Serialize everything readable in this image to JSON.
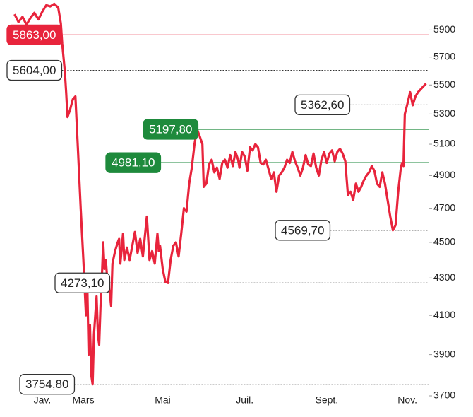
{
  "chart_data": {
    "type": "line",
    "log_scale": true,
    "ylim": [
      3700,
      6130
    ],
    "yticks": [
      3700,
      3900,
      4100,
      4300,
      4500,
      4700,
      4900,
      5100,
      5300,
      5500,
      5700,
      5900
    ],
    "xlim": [
      5,
      322
    ],
    "xticks": [
      {
        "value": 29,
        "label": "Jav."
      },
      {
        "value": 60,
        "label": "Mars"
      },
      {
        "value": 120,
        "label": "Mai"
      },
      {
        "value": 182,
        "label": "Juil."
      },
      {
        "value": 244,
        "label": "Sept."
      },
      {
        "value": 305,
        "label": "Nov."
      }
    ],
    "series": [
      {
        "color": "#e8243c",
        "x": [
          8,
          11,
          14,
          17,
          20,
          23,
          26,
          29,
          32,
          35,
          38,
          41,
          43,
          44,
          46,
          47,
          48,
          50,
          52,
          54,
          56,
          58,
          60,
          62,
          63,
          64,
          65,
          66,
          67,
          68,
          70,
          71,
          72,
          73,
          74,
          75,
          76,
          77,
          78,
          80,
          81,
          82,
          84,
          86,
          87,
          88,
          90,
          91,
          93,
          95,
          97,
          99,
          101,
          103,
          105,
          108,
          110,
          112,
          114,
          116,
          117,
          118,
          120,
          122,
          124,
          126,
          128,
          130,
          132,
          134,
          136,
          138,
          140,
          142,
          144,
          146,
          148,
          150,
          151,
          153,
          155,
          157,
          159,
          161,
          163,
          165,
          167,
          169,
          171,
          173,
          175,
          177,
          178,
          180,
          182,
          184,
          186,
          188,
          190,
          192,
          194,
          196,
          198,
          200,
          202,
          204,
          206,
          208,
          210,
          212,
          214,
          216,
          218,
          220,
          222,
          224,
          226,
          228,
          230,
          232,
          234,
          236,
          238,
          240,
          242,
          244,
          246,
          248,
          250,
          252,
          254,
          256,
          258,
          260,
          262,
          264,
          266,
          268,
          270,
          272,
          274,
          276,
          278,
          280,
          282,
          284,
          286,
          288,
          290,
          292,
          294,
          296,
          298,
          300,
          301,
          302,
          303,
          305,
          307,
          309,
          311,
          313,
          316,
          319
        ],
        "values": [
          6020,
          5960,
          6000,
          5940,
          5990,
          6030,
          5980,
          6040,
          6090,
          6080,
          6100,
          6070,
          5950,
          5800,
          5600,
          5450,
          5280,
          5330,
          5400,
          5420,
          5050,
          4700,
          4400,
          4100,
          4250,
          3900,
          4050,
          3800,
          3754.8,
          4000,
          4200,
          4000,
          3950,
          4150,
          4300,
          4500,
          4350,
          4400,
          4300,
          4220,
          4150,
          4380,
          4450,
          4500,
          4520,
          4380,
          4550,
          4400,
          4470,
          4400,
          4480,
          4560,
          4440,
          4520,
          4420,
          4650,
          4400,
          4450,
          4380,
          4550,
          4450,
          4480,
          4350,
          4280,
          4273.1,
          4400,
          4480,
          4500,
          4420,
          4550,
          4700,
          4680,
          4850,
          4950,
          5100,
          5197.8,
          5150,
          5100,
          4830,
          4850,
          4970,
          5000,
          4920,
          4950,
          4880,
          4980,
          5000,
          4950,
          5030,
          4960,
          5050,
          5000,
          4950,
          5050,
          5020,
          4930,
          5080,
          5060,
          5100,
          5080,
          4980,
          4970,
          5000,
          4940,
          4880,
          4920,
          4800,
          4900,
          4920,
          4950,
          5000,
          4980,
          5050,
          4990,
          4950,
          4900,
          4950,
          5030,
          4970,
          4960,
          5040,
          4950,
          4900,
          5000,
          5050,
          4980,
          5040,
          5060,
          4990,
          5050,
          5070,
          5040,
          4990,
          4780,
          4800,
          4750,
          4850,
          4800,
          4830,
          4870,
          4900,
          4920,
          4960,
          4930,
          4850,
          4830,
          4920,
          4850,
          4750,
          4650,
          4569.7,
          4600,
          4800,
          4950,
          4980,
          4960,
          5300,
          5370,
          5450,
          5360,
          5420,
          5450,
          5480,
          5510
        ]
      }
    ],
    "annotations": [
      {
        "value": 5863,
        "label": "5863,00",
        "color": "#e8243c",
        "style": "solid"
      },
      {
        "value": 5604,
        "label": "5604,00",
        "color": "#333333",
        "style": "dotted"
      },
      {
        "value": 5362.6,
        "label": "5362,60",
        "color": "#333333",
        "style": "dotted"
      },
      {
        "value": 5197.8,
        "label": "5197,80",
        "color": "#1e8a3c",
        "style": "solid"
      },
      {
        "value": 4981.1,
        "label": "4981,10",
        "color": "#1e8a3c",
        "style": "solid"
      },
      {
        "value": 4569.7,
        "label": "4569,70",
        "color": "#333333",
        "style": "dotted"
      },
      {
        "value": 4273.1,
        "label": "4273,10",
        "color": "#333333",
        "style": "dotted"
      },
      {
        "value": 3754.8,
        "label": "3754,80",
        "color": "#333333",
        "style": "dotted"
      }
    ]
  }
}
